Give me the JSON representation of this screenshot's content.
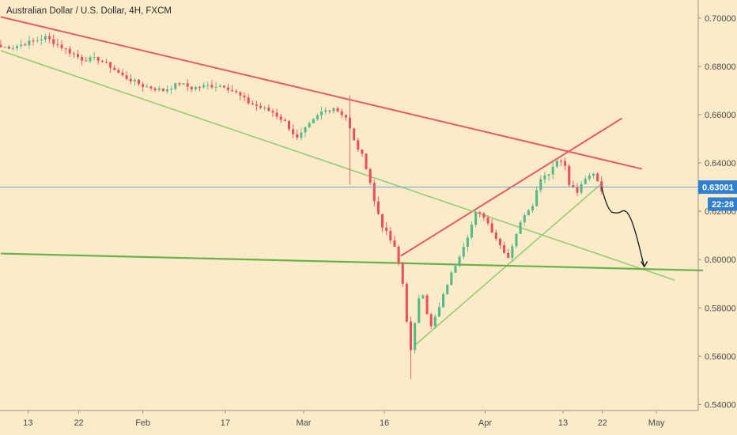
{
  "header": {
    "title": "Australian Dollar / U.S. Dollar, 4H, FXCM"
  },
  "chart_data": {
    "type": "candlestick",
    "symbol": "Australian Dollar / U.S. Dollar",
    "timeframe": "4H",
    "source": "FXCM",
    "x_tick_labels": [
      "13",
      "22",
      "Feb",
      "17",
      "Mar",
      "16",
      "Apr",
      "13",
      "22",
      "May"
    ],
    "y_tick_labels": [
      "0.70000",
      "0.68000",
      "0.66000",
      "0.64000",
      "0.62000",
      "0.60000",
      "0.58000",
      "0.56000",
      "0.54000"
    ],
    "ylim": [
      0.5375,
      0.7075
    ],
    "current_price": "0.63001",
    "countdown": "22:28",
    "anchors": [
      [
        0,
        0.688
      ],
      [
        3,
        0.688
      ],
      [
        7,
        0.69
      ],
      [
        11,
        0.692
      ],
      [
        14,
        0.689
      ],
      [
        17,
        0.686
      ],
      [
        20,
        0.683
      ],
      [
        24,
        0.683
      ],
      [
        27,
        0.68
      ],
      [
        30,
        0.676
      ],
      [
        35,
        0.672
      ],
      [
        40,
        0.67
      ],
      [
        44,
        0.673
      ],
      [
        47,
        0.671
      ],
      [
        51,
        0.672
      ],
      [
        55,
        0.672
      ],
      [
        58,
        0.669
      ],
      [
        61,
        0.665
      ],
      [
        64,
        0.663
      ],
      [
        67,
        0.661
      ],
      [
        70,
        0.657
      ],
      [
        73,
        0.65
      ],
      [
        75,
        0.654
      ],
      [
        79,
        0.661
      ],
      [
        82,
        0.663
      ],
      [
        85,
        0.659
      ],
      [
        87,
        0.649
      ],
      [
        89,
        0.643
      ],
      [
        90.5,
        0.636
      ],
      [
        92,
        0.624
      ],
      [
        94,
        0.614
      ],
      [
        96,
        0.608
      ],
      [
        97.5,
        0.603
      ],
      [
        99,
        0.59
      ],
      [
        100,
        0.575
      ],
      [
        101,
        0.562
      ],
      [
        102,
        0.573
      ],
      [
        103.5,
        0.59
      ],
      [
        105,
        0.578
      ],
      [
        106,
        0.572
      ],
      [
        108,
        0.58
      ],
      [
        110,
        0.59
      ],
      [
        112,
        0.598
      ],
      [
        113.5,
        0.604
      ],
      [
        115.5,
        0.612
      ],
      [
        117,
        0.619
      ],
      [
        119,
        0.618
      ],
      [
        121,
        0.612
      ],
      [
        123,
        0.606
      ],
      [
        125,
        0.601
      ],
      [
        127,
        0.611
      ],
      [
        129,
        0.619
      ],
      [
        131,
        0.623
      ],
      [
        133,
        0.634
      ],
      [
        135,
        0.636
      ],
      [
        137,
        0.641
      ],
      [
        138.5,
        0.642
      ],
      [
        140,
        0.631
      ],
      [
        142,
        0.628
      ],
      [
        144,
        0.633
      ],
      [
        146,
        0.636
      ],
      [
        147.5,
        0.631
      ],
      [
        148,
        0.629
      ]
    ],
    "trendlines": [
      {
        "name": "red-falling",
        "color": "#e85a5f",
        "width": 2.0,
        "from": [
          0,
          0.7005
        ],
        "to": [
          158,
          0.6375
        ]
      },
      {
        "name": "red-rising",
        "color": "#e85a5f",
        "width": 2.0,
        "from": [
          98.5,
          0.6015
        ],
        "to": [
          153,
          0.6585
        ]
      },
      {
        "name": "green-falling",
        "color": "#9ccc7a",
        "width": 1.7,
        "from": [
          0,
          0.6865
        ],
        "to": [
          166,
          0.5915
        ]
      },
      {
        "name": "green-rising",
        "color": "#9ccc7a",
        "width": 1.7,
        "from": [
          102,
          0.5645
        ],
        "to": [
          148,
          0.6315
        ]
      },
      {
        "name": "green-horizontal",
        "color": "#68b04a",
        "width": 2.2,
        "from": [
          0,
          0.6025
        ],
        "to": [
          173,
          0.5955
        ]
      }
    ],
    "projection_curve": {
      "color": "#111111",
      "points": [
        [
          148,
          0.63
        ],
        [
          149.5,
          0.62
        ],
        [
          152,
          0.619
        ],
        [
          154,
          0.621
        ],
        [
          156,
          0.614
        ],
        [
          158.5,
          0.597
        ]
      ]
    },
    "legend": "none",
    "grid": false
  }
}
